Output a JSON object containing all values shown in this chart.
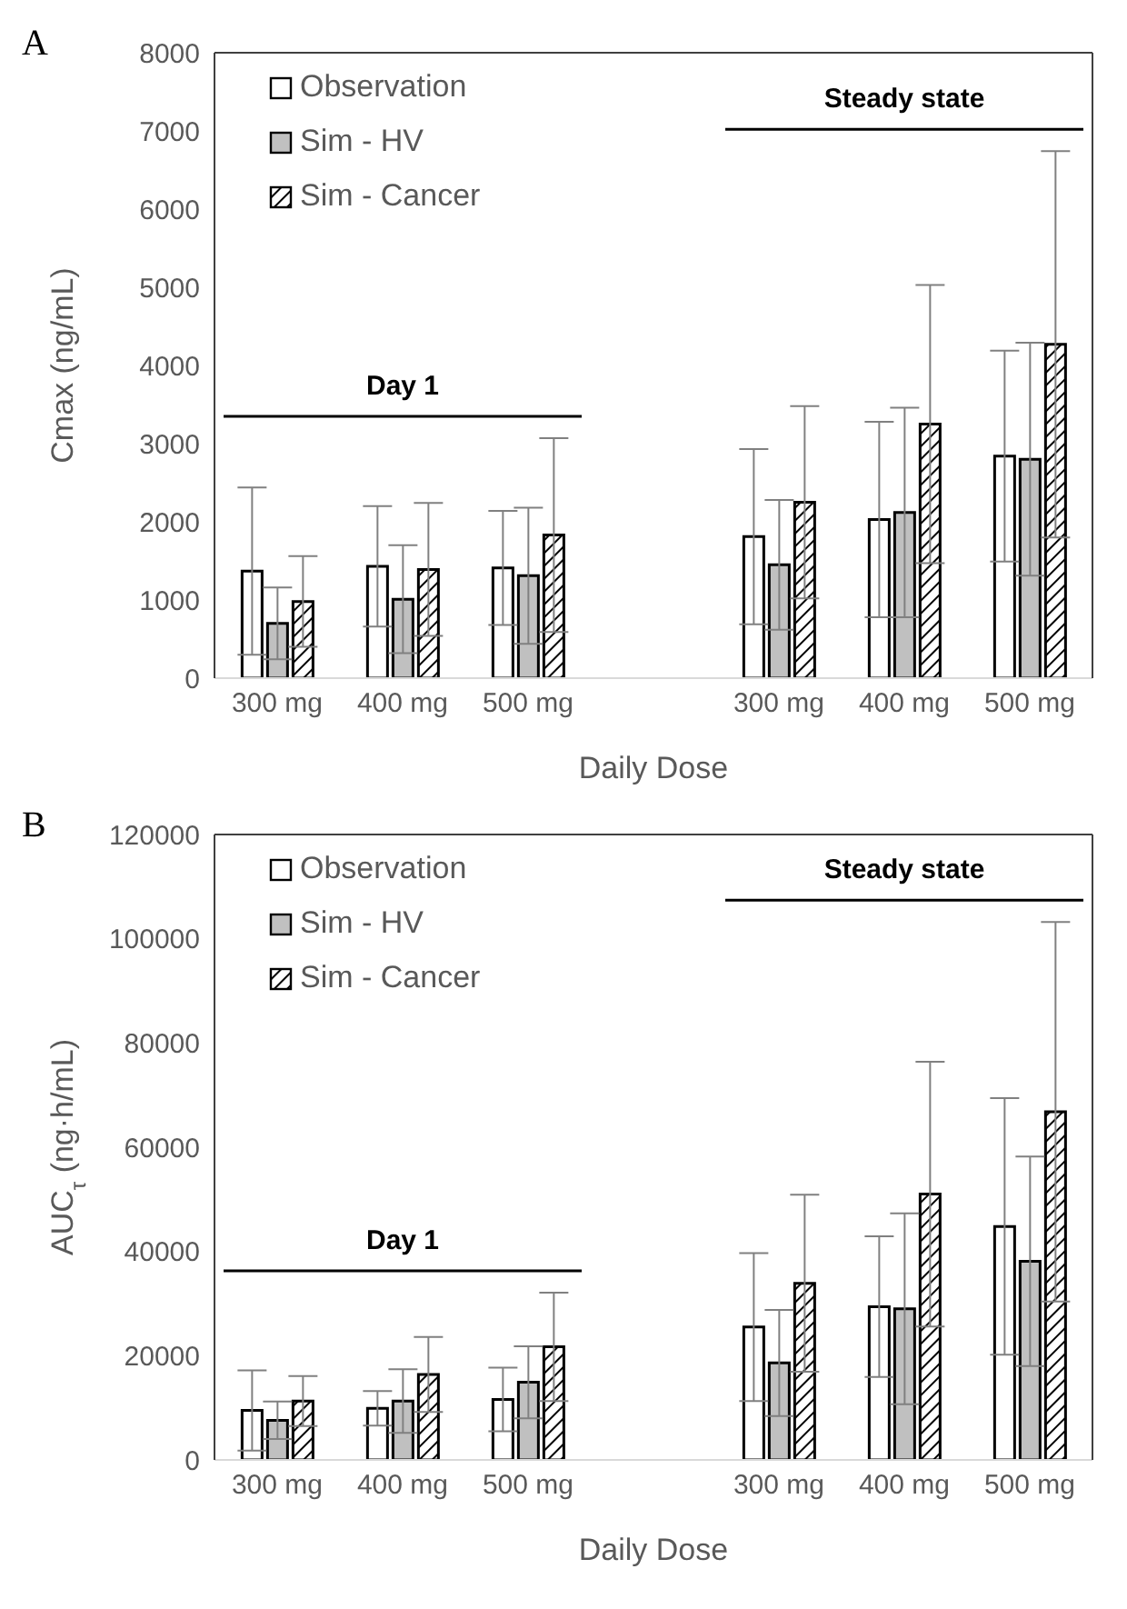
{
  "chart_data": [
    {
      "type": "bar",
      "title": "A",
      "xlabel": "Daily Dose",
      "ylabel": "Cmax (ng/mL)",
      "categories": [
        "300 mg",
        "400 mg",
        "500 mg",
        null,
        "300 mg",
        "400 mg",
        "500 mg"
      ],
      "series": [
        {
          "name": "Observation",
          "color": "#ffffff",
          "values": [
            1370,
            1430,
            1410,
            null,
            1810,
            2030,
            2840
          ],
          "errors": [
            1070,
            770,
            730,
            null,
            1120,
            1250,
            1350
          ]
        },
        {
          "name": "Sim - HV",
          "color": "#c0c0c0",
          "values": [
            700,
            1010,
            1310,
            null,
            1450,
            2120,
            2800
          ],
          "errors": [
            460,
            690,
            870,
            null,
            830,
            1340,
            1490
          ]
        },
        {
          "name": "Sim - Cancer",
          "color": "#000000",
          "values": [
            980,
            1390,
            1830,
            null,
            2250,
            3250,
            4270
          ],
          "errors": [
            580,
            850,
            1240,
            null,
            1230,
            1780,
            2470
          ]
        }
      ],
      "ylim": [
        0,
        8000
      ],
      "yticks": [
        0,
        1000,
        2000,
        3000,
        4000,
        5000,
        6000,
        7000,
        8000
      ],
      "annotations": [
        "Day 1",
        "Steady state"
      ],
      "legend": "top left",
      "grid": false
    },
    {
      "type": "bar",
      "title": "B",
      "xlabel": "Daily Dose",
      "ylabel": "AUC$_{τ}$ (ng·h/mL)",
      "categories": [
        "300 mg",
        "400 mg",
        "500 mg",
        null,
        "300 mg",
        "400 mg",
        "500 mg"
      ],
      "series": [
        {
          "name": "Observation",
          "color": "#ffffff",
          "values": [
            9500,
            9900,
            11600,
            null,
            25500,
            29400,
            44800
          ],
          "errors": [
            7700,
            3300,
            6100,
            null,
            14200,
            13500,
            24600
          ]
        },
        {
          "name": "Sim - HV",
          "color": "#c0c0c0",
          "values": [
            7600,
            11300,
            14900,
            null,
            18600,
            29000,
            38100
          ],
          "errors": [
            3600,
            6100,
            6900,
            null,
            10200,
            18300,
            20100
          ]
        },
        {
          "name": "Sim - Cancer",
          "color": "#000000",
          "values": [
            11300,
            16400,
            21700,
            null,
            33900,
            51000,
            66800
          ],
          "errors": [
            4800,
            7200,
            10400,
            null,
            17000,
            25400,
            36400
          ]
        }
      ],
      "ylim": [
        0,
        120000
      ],
      "yticks": [
        0,
        20000,
        40000,
        60000,
        80000,
        100000,
        120000
      ],
      "annotations": [
        "Day 1",
        "Steady state"
      ],
      "legend": "top left",
      "grid": false
    }
  ]
}
